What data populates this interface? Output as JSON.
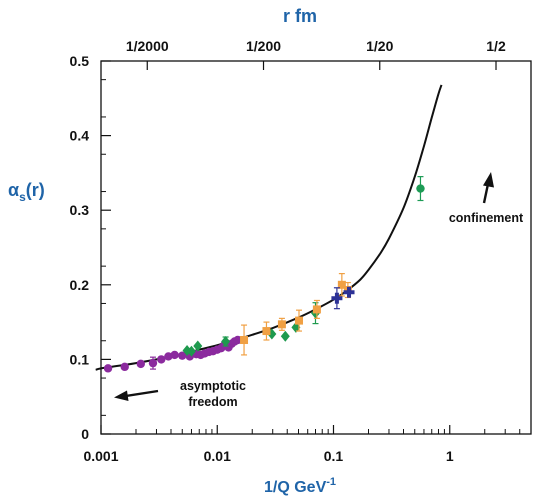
{
  "chart_data": {
    "type": "scatter",
    "title": "",
    "xlabel": {
      "base": "1/Q GeV",
      "sup": "-1"
    },
    "ylabel": {
      "base": "α",
      "sub": "s",
      "rest": "(r)"
    },
    "top_axis_label": "r fm",
    "x_scale": "log",
    "xlim": [
      0.001,
      5
    ],
    "ylim": [
      0,
      0.5
    ],
    "grid": false,
    "x_ticks": [
      {
        "value": 0.001,
        "label": "0.001"
      },
      {
        "value": 0.01,
        "label": "0.01"
      },
      {
        "value": 0.1,
        "label": "0.1"
      },
      {
        "value": 1,
        "label": "1"
      }
    ],
    "y_ticks": [
      {
        "value": 0,
        "label": "0"
      },
      {
        "value": 0.1,
        "label": "0.1"
      },
      {
        "value": 0.2,
        "label": "0.2"
      },
      {
        "value": 0.3,
        "label": "0.3"
      },
      {
        "value": 0.4,
        "label": "0.4"
      },
      {
        "value": 0.5,
        "label": "0.5"
      }
    ],
    "top_ticks": [
      {
        "value": 0.0025,
        "label": "1/2000"
      },
      {
        "value": 0.025,
        "label": "1/200"
      },
      {
        "value": 0.25,
        "label": "1/20"
      },
      {
        "value": 2.5,
        "label": "1/2"
      }
    ],
    "colors": {
      "purple": "#8b2a9e",
      "green": "#1e9a4e",
      "orange": "#f0a043",
      "blue": "#2c3196",
      "teal": "#1d9b55",
      "curve": "#111111",
      "axis_title": "#1f64a8"
    },
    "curve": {
      "x": [
        0.0009,
        0.001,
        0.0015,
        0.002,
        0.003,
        0.005,
        0.007,
        0.01,
        0.015,
        0.02,
        0.03,
        0.05,
        0.07,
        0.1,
        0.13,
        0.17,
        0.2,
        0.25,
        0.3,
        0.4,
        0.5,
        0.6,
        0.7,
        0.8,
        0.85
      ],
      "y": [
        0.086,
        0.088,
        0.092,
        0.095,
        0.1,
        0.107,
        0.113,
        0.119,
        0.127,
        0.133,
        0.142,
        0.156,
        0.167,
        0.18,
        0.192,
        0.207,
        0.22,
        0.241,
        0.262,
        0.303,
        0.345,
        0.386,
        0.424,
        0.456,
        0.468
      ]
    },
    "series": [
      {
        "marker": "circle",
        "color": "purple",
        "points": [
          {
            "x": 0.00115,
            "y": 0.088
          },
          {
            "x": 0.0016,
            "y": 0.09
          },
          {
            "x": 0.0022,
            "y": 0.094
          },
          {
            "x": 0.0028,
            "y": 0.095,
            "err": 0.008
          },
          {
            "x": 0.0033,
            "y": 0.1
          },
          {
            "x": 0.0038,
            "y": 0.104
          },
          {
            "x": 0.0043,
            "y": 0.106
          },
          {
            "x": 0.005,
            "y": 0.105
          },
          {
            "x": 0.0058,
            "y": 0.104
          },
          {
            "x": 0.0066,
            "y": 0.107
          },
          {
            "x": 0.0072,
            "y": 0.106
          },
          {
            "x": 0.0078,
            "y": 0.108
          },
          {
            "x": 0.0085,
            "y": 0.11
          },
          {
            "x": 0.0092,
            "y": 0.111
          },
          {
            "x": 0.01,
            "y": 0.113
          },
          {
            "x": 0.0108,
            "y": 0.115
          },
          {
            "x": 0.0116,
            "y": 0.12
          },
          {
            "x": 0.0125,
            "y": 0.116
          },
          {
            "x": 0.0133,
            "y": 0.121
          },
          {
            "x": 0.0141,
            "y": 0.124
          },
          {
            "x": 0.015,
            "y": 0.126
          }
        ]
      },
      {
        "marker": "diamond",
        "color": "green",
        "points": [
          {
            "x": 0.0055,
            "y": 0.112
          },
          {
            "x": 0.006,
            "y": 0.111
          },
          {
            "x": 0.0068,
            "y": 0.118
          },
          {
            "x": 0.0118,
            "y": 0.124,
            "err": 0.006
          },
          {
            "x": 0.0295,
            "y": 0.134
          },
          {
            "x": 0.0385,
            "y": 0.131
          },
          {
            "x": 0.0475,
            "y": 0.143
          },
          {
            "x": 0.07,
            "y": 0.162,
            "err": 0.014
          }
        ]
      },
      {
        "marker": "square",
        "color": "orange",
        "points": [
          {
            "x": 0.017,
            "y": 0.126,
            "err": 0.02
          },
          {
            "x": 0.0265,
            "y": 0.138,
            "err": 0.012
          },
          {
            "x": 0.036,
            "y": 0.147,
            "err": 0.008
          },
          {
            "x": 0.0505,
            "y": 0.152,
            "err": 0.014
          },
          {
            "x": 0.072,
            "y": 0.167,
            "err": 0.012
          },
          {
            "x": 0.118,
            "y": 0.2,
            "err": 0.015
          },
          {
            "x": 0.133,
            "y": 0.193,
            "err": 0.01
          }
        ]
      },
      {
        "marker": "cross",
        "color": "blue",
        "points": [
          {
            "x": 0.107,
            "y": 0.182,
            "err": 0.014
          },
          {
            "x": 0.136,
            "y": 0.19
          }
        ]
      },
      {
        "marker": "circle",
        "color": "teal",
        "points": [
          {
            "x": 0.56,
            "y": 0.329,
            "err": 0.016
          }
        ]
      }
    ],
    "annotations": [
      {
        "lines": [
          "asymptotic",
          "freedom"
        ],
        "arrow": "left"
      },
      {
        "lines": [
          "confinement"
        ],
        "arrow": "up"
      }
    ]
  }
}
